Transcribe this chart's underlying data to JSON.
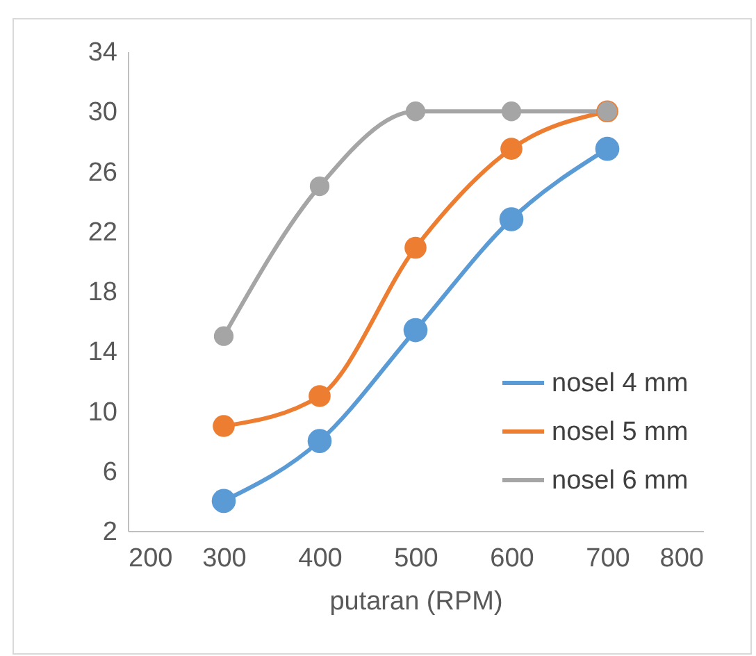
{
  "chart_data": {
    "type": "line",
    "xlabel": "putaran (RPM)",
    "x": [
      300,
      400,
      500,
      600,
      700
    ],
    "series": [
      {
        "name": "nosel 4 mm",
        "color": "#5b9bd5",
        "values": [
          4,
          8,
          15.4,
          22.8,
          27.5
        ]
      },
      {
        "name": "nosel 5 mm",
        "color": "#ed7d31",
        "values": [
          9,
          11,
          20.9,
          27.5,
          30
        ]
      },
      {
        "name": "nosel 6 mm",
        "color": "#a5a5a5",
        "values": [
          15,
          25,
          30,
          30,
          30
        ]
      }
    ],
    "xlim": [
      200,
      800
    ],
    "xticks": [
      200,
      300,
      400,
      500,
      600,
      700,
      800
    ],
    "ylim": [
      2,
      34
    ],
    "yticks": [
      2,
      6,
      10,
      14,
      18,
      22,
      26,
      30,
      34
    ],
    "grid": false,
    "legend": "right",
    "marker": "circle",
    "line_style": "solid"
  }
}
